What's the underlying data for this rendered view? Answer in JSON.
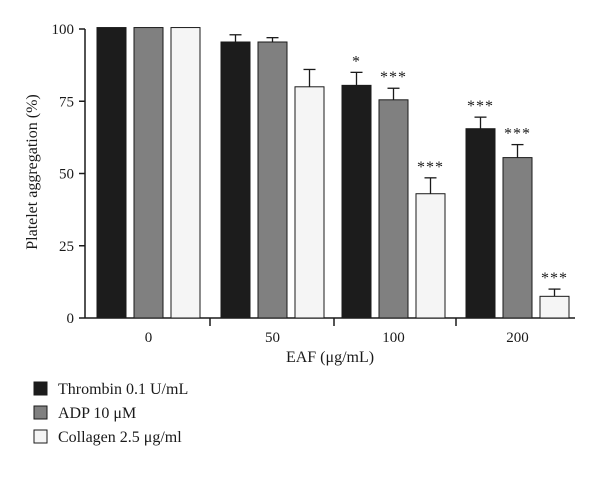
{
  "chart_data": {
    "type": "bar",
    "xlabel": "EAF (μg/mL)",
    "ylabel": "Platelet aggregation (%)",
    "ylim": [
      0,
      100
    ],
    "yticks": [
      0,
      25,
      50,
      75,
      100
    ],
    "categories": [
      "0",
      "50",
      "100",
      "200"
    ],
    "grid": false,
    "legend_position": "bottom-left",
    "series": [
      {
        "name": "Thrombin 0.1 U/mL",
        "color": "#1c1c1c",
        "values": [
          100.5,
          95.5,
          80.5,
          65.5
        ],
        "errors": [
          0.5,
          2.5,
          4.5,
          4.0
        ],
        "significance": [
          "",
          "",
          "*",
          "***"
        ]
      },
      {
        "name": "ADP 10 μM",
        "color": "#808080",
        "values": [
          100.5,
          95.5,
          75.5,
          55.5
        ],
        "errors": [
          0.3,
          1.5,
          4.0,
          4.5
        ],
        "significance": [
          "",
          "",
          "***",
          "***"
        ]
      },
      {
        "name": "Collagen 2.5 μg/ml",
        "color": "#f5f5f5",
        "values": [
          100.5,
          80.0,
          43.0,
          7.5
        ],
        "errors": [
          0.3,
          6.0,
          5.5,
          2.5
        ],
        "significance": [
          "",
          "",
          "***",
          "***"
        ]
      }
    ]
  }
}
